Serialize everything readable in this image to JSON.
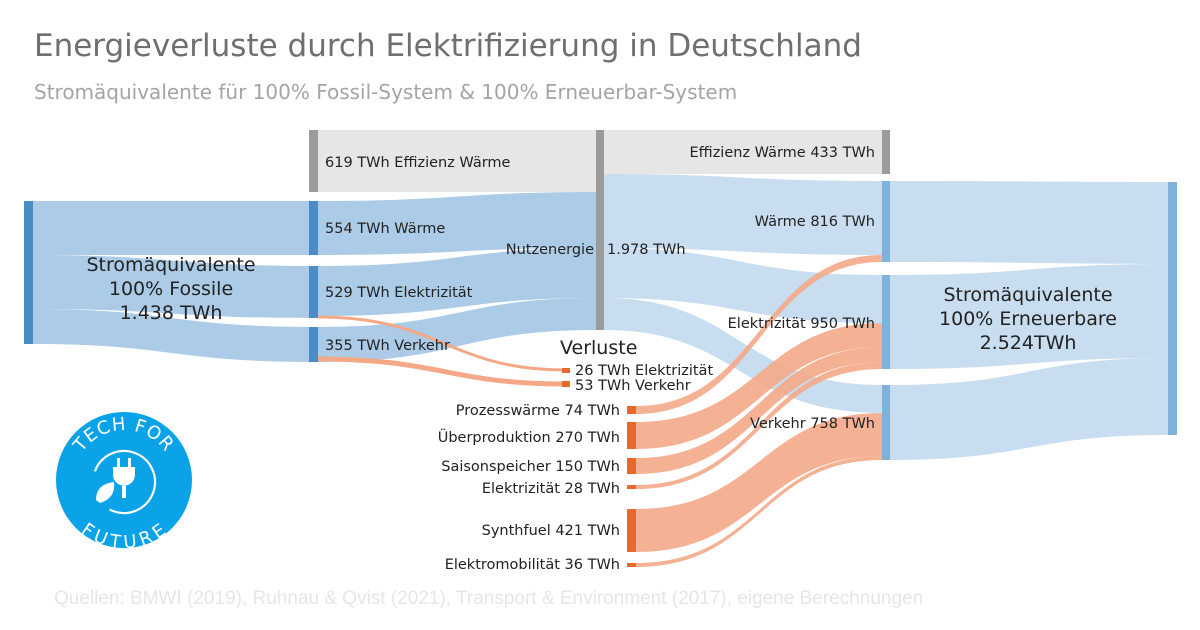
{
  "header": {
    "title": "Energieverluste durch Elektrifizierung in Deutschland",
    "subtitle": "Stromäquivalente für 100% Fossil-System & 100% Erneuerbar-System"
  },
  "source": "Quellen: BMWI (2019), Ruhnau & Qvist (2021), Transport & Environment (2017), eigene Berechnungen",
  "logo": {
    "line1": "TECH FOR",
    "line2": "FUTURE",
    "icon": "plug-leaf-icon"
  },
  "colors": {
    "blue_node": "#4a8cc6",
    "blue_node_light": "#7fb2db",
    "gray_node": "#9b9b9b",
    "orange_node": "#e8692e",
    "flow_blue": "#a8c8e6",
    "flow_blue_light": "#c5dcef",
    "flow_orange": "#f4a888",
    "flow_gray": "#e6e6e6",
    "logo_blue": "#0aa3e8"
  },
  "nodes": {
    "fossil": {
      "line1": "Stromäquivalente",
      "line2": "100% Fossile",
      "line3": "1.438 TWh"
    },
    "effizienz_left": "619 TWh Effizienz Wärme",
    "waerme_left": "554 TWh Wärme",
    "elektrizitaet_left": "529 TWh Elektrizität",
    "verkehr_left": "355 TWh Verkehr",
    "nutzenergie": "Nutzenergie",
    "nutzenergie_value": "1.978 TWh",
    "effizienz_right": "Effizienz Wärme 433 TWh",
    "waerme_right": "Wärme 816 TWh",
    "elektrizitaet_right": "Elektrizität 950 TWh",
    "verkehr_right": "Verkehr 758 TWh",
    "verluste": "Verluste",
    "verlust_elektrizitaet": "26 TWh Elektrizität",
    "verlust_verkehr": "53 TWh Verkehr",
    "prozesswaerme": "Prozesswärme 74 TWh",
    "ueberproduktion": "Überproduktion 270 TWh",
    "saisonspeicher": "Saisonspeicher 150 TWh",
    "elektrizitaet_loss": "Elektrizität 28 TWh",
    "synthfuel": "Synthfuel 421 TWh",
    "elektromobilitaet": "Elektromobilität 36 TWh",
    "erneuerbare": {
      "line1": "Stromäquivalente",
      "line2": "100% Erneuerbare",
      "line3": "2.524TWh"
    }
  }
}
